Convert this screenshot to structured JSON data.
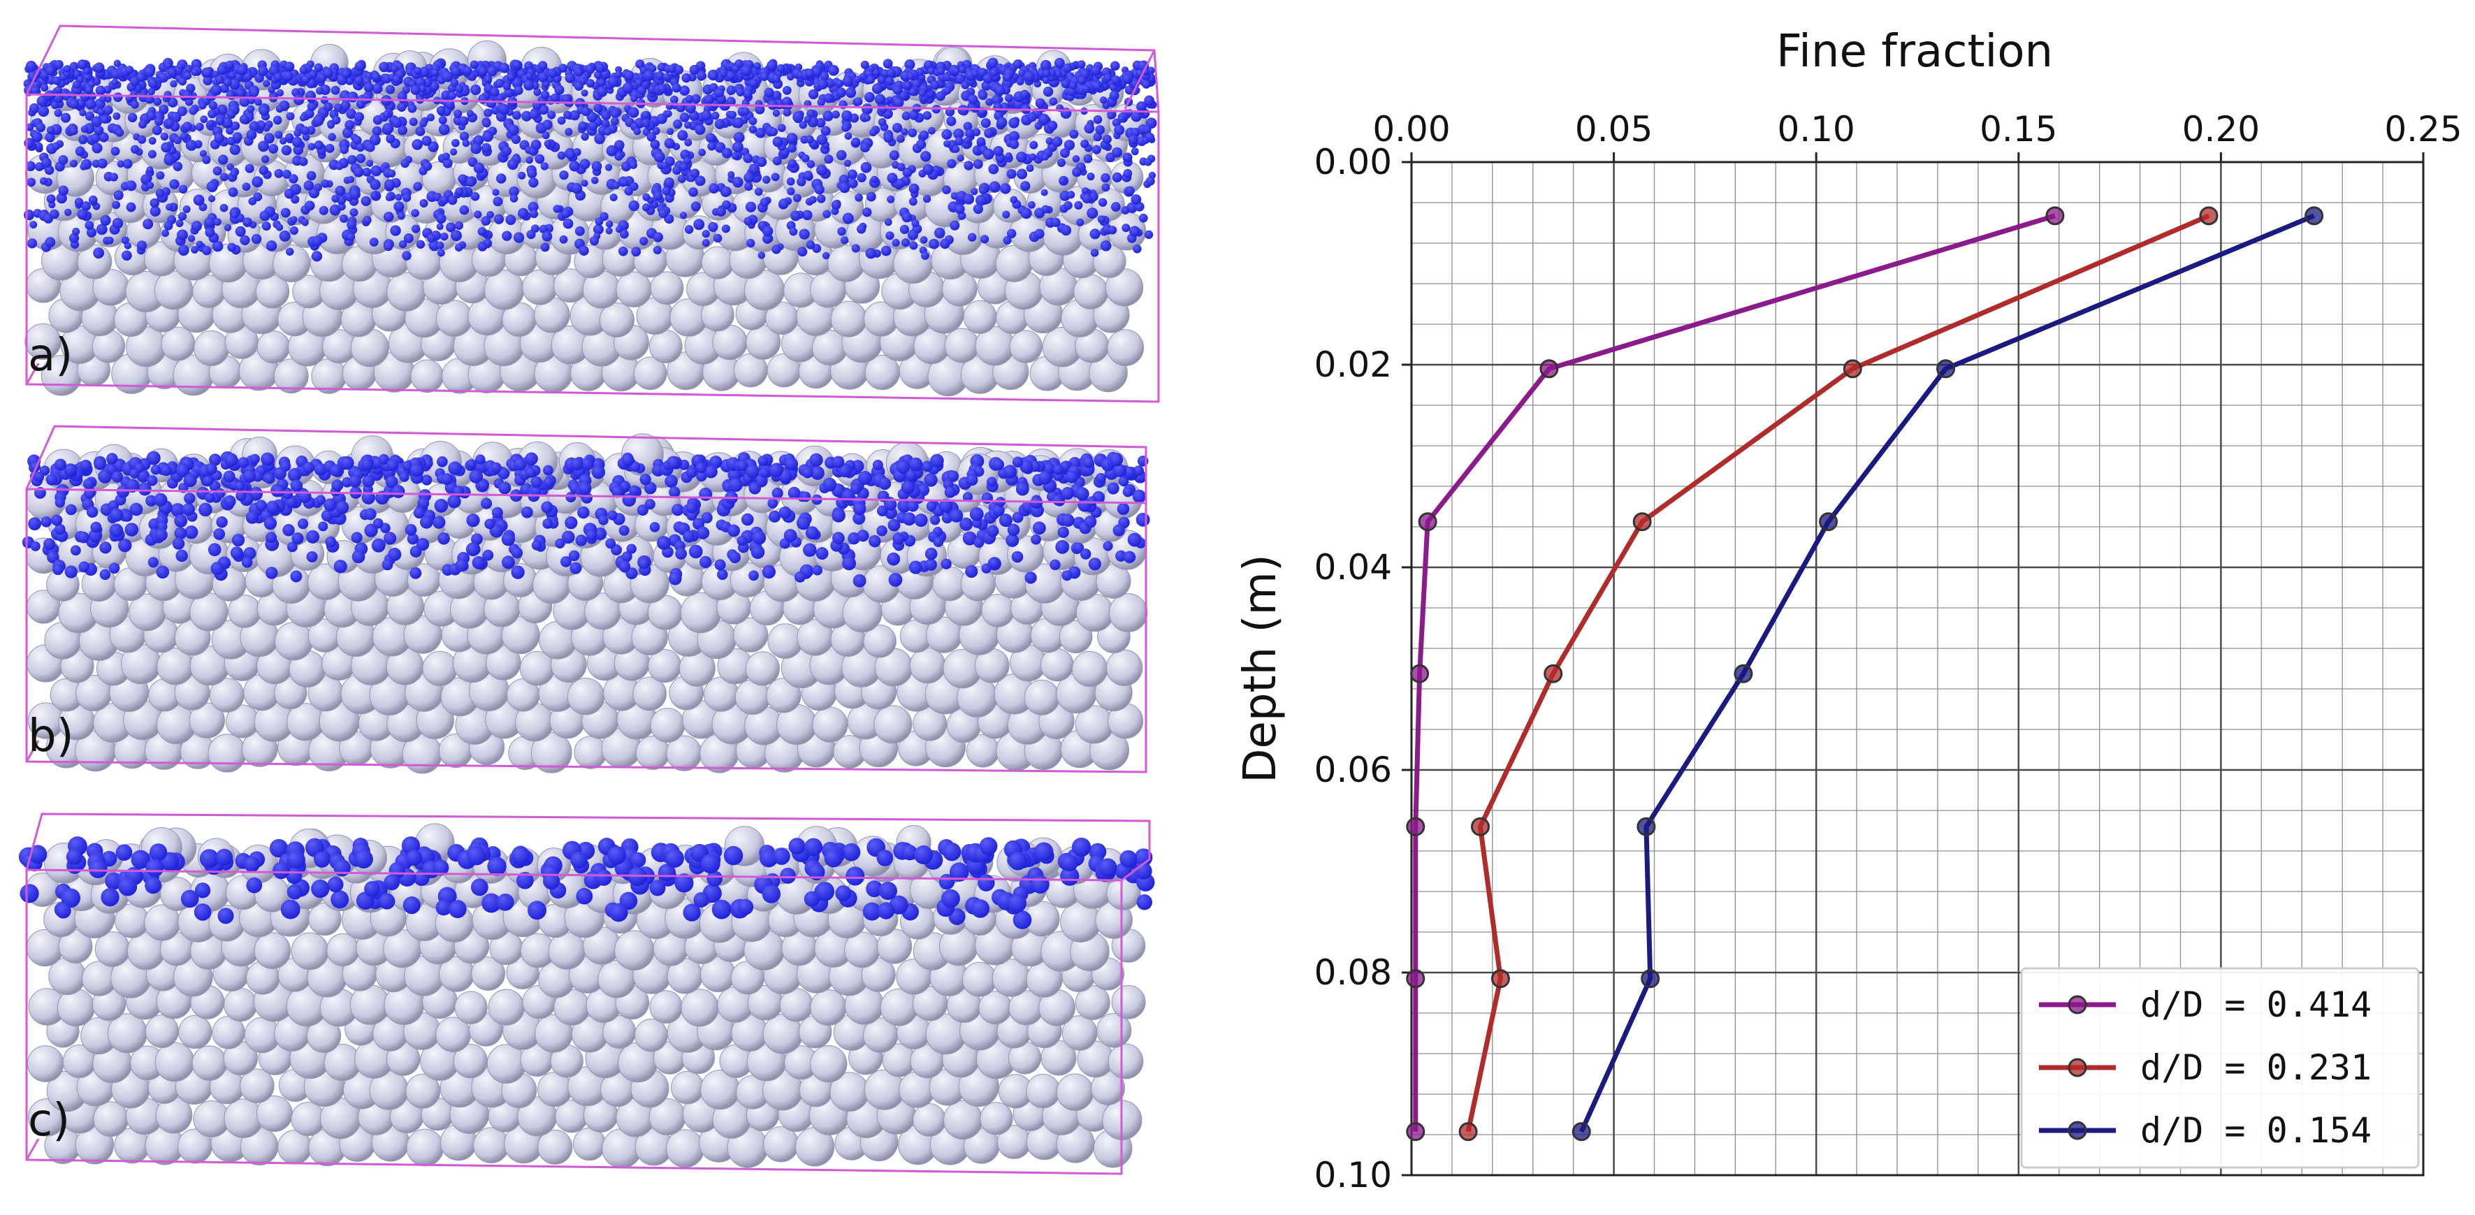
{
  "panels": [
    {
      "label": "a)",
      "fines_density": "high",
      "fines_size": "small"
    },
    {
      "label": "b)",
      "fines_density": "medium",
      "fines_size": "medium"
    },
    {
      "label": "c)",
      "fines_density": "low",
      "fines_size": "large"
    }
  ],
  "colors": {
    "coarse_particle": "#c7c9df",
    "fine_particle": "#1f22d8",
    "box_outline": "#d35ad6",
    "grid_major": "#4a4a4a",
    "grid_minor": "#8c8c8c"
  },
  "chart_data": {
    "type": "line",
    "title": "Fine fraction",
    "xlabel": "Fine fraction",
    "ylabel": "Depth (m)",
    "xlim": [
      0.0,
      0.25
    ],
    "ylim": [
      0.1,
      0.0
    ],
    "x_axis_position": "top",
    "y_inverted": true,
    "xticks": [
      "0.00",
      "0.05",
      "0.10",
      "0.15",
      "0.20",
      "0.25"
    ],
    "yticks": [
      "0.00",
      "0.02",
      "0.04",
      "0.06",
      "0.08",
      "0.10"
    ],
    "grid": true,
    "legend_position": "bottom-right",
    "series": [
      {
        "name": "d/D  = 0.414",
        "color": "#8b1a8b",
        "depth": [
          0.0053,
          0.0204,
          0.0355,
          0.0505,
          0.0656,
          0.0806,
          0.0957
        ],
        "fraction": [
          0.159,
          0.034,
          0.004,
          0.002,
          0.001,
          0.001,
          0.001
        ]
      },
      {
        "name": "d/D  = 0.231",
        "color": "#b22b2b",
        "depth": [
          0.0053,
          0.0204,
          0.0355,
          0.0505,
          0.0656,
          0.0806,
          0.0957
        ],
        "fraction": [
          0.197,
          0.109,
          0.057,
          0.035,
          0.017,
          0.022,
          0.014
        ]
      },
      {
        "name": "d/D = 0.154",
        "color": "#1a1a80",
        "depth": [
          0.0053,
          0.0204,
          0.0355,
          0.0505,
          0.0656,
          0.0806,
          0.0957
        ],
        "fraction": [
          0.223,
          0.132,
          0.103,
          0.082,
          0.058,
          0.059,
          0.042
        ]
      }
    ]
  }
}
